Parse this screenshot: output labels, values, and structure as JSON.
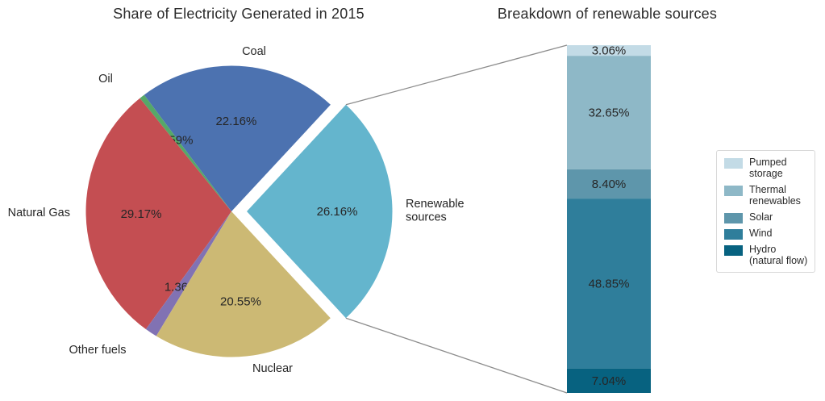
{
  "colors": {
    "text": "#262626",
    "title_text": "#2b2b2b",
    "connector_line": "#8c8c8c",
    "legend_border": "#d8d8d8",
    "background": "#ffffff"
  },
  "chart_data": [
    {
      "type": "pie",
      "title": "Share of Electricity Generated in 2015",
      "unit": "%",
      "direction": "counterclockwise",
      "start_angle_deg": -47.09,
      "slices": [
        {
          "label": "Renewable sources",
          "value": 26.16,
          "display": "26.16%",
          "color": "#64B5CD",
          "exploded": true
        },
        {
          "label": "Coal",
          "value": 22.16,
          "display": "22.16%",
          "color": "#4C72B0",
          "exploded": false
        },
        {
          "label": "Oil",
          "value": 0.59,
          "display": "0.59%",
          "color": "#55A868",
          "exploded": false
        },
        {
          "label": "Natural Gas",
          "value": 29.17,
          "display": "29.17%",
          "color": "#C44E52",
          "exploded": false
        },
        {
          "label": "Other fuels",
          "value": 1.36,
          "display": "1.36%",
          "color": "#8172B3",
          "exploded": false
        },
        {
          "label": "Nuclear",
          "value": 20.55,
          "display": "20.55%",
          "color": "#CCB974",
          "exploded": false
        }
      ]
    },
    {
      "type": "stacked_bar",
      "title": "Breakdown of renewable sources",
      "unit": "%",
      "segment_order": "top-to-bottom",
      "segments": [
        {
          "label": "Pumped storage",
          "value": 3.06,
          "display": "3.06%",
          "color": "#C3DBE6"
        },
        {
          "label": "Thermal renewables",
          "value": 32.65,
          "display": "32.65%",
          "color": "#8EB8C7"
        },
        {
          "label": "Solar",
          "value": 8.4,
          "display": "8.40%",
          "color": "#5E96AB"
        },
        {
          "label": "Wind",
          "value": 48.85,
          "display": "48.85%",
          "color": "#2F7E9B"
        },
        {
          "label": "Hydro (natural flow)",
          "value": 7.04,
          "display": "7.04%",
          "color": "#076280"
        }
      ],
      "legend": {
        "position": "right",
        "items": [
          "Pumped storage",
          "Thermal renewables",
          "Solar",
          "Wind",
          "Hydro (natural flow)"
        ]
      }
    }
  ]
}
